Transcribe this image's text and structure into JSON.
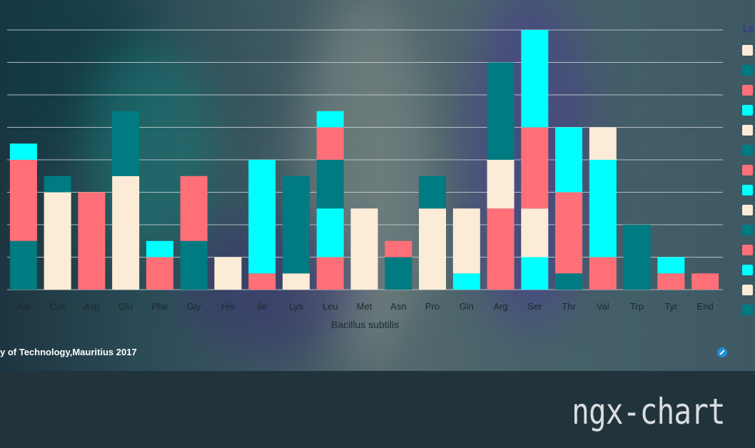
{
  "chart_data": {
    "type": "bar",
    "stacked": true,
    "xlabel": "Bacillus subtilis",
    "ylabel": "",
    "ylim": [
      0,
      8
    ],
    "grid": true,
    "categories": [
      "Ala",
      "Cys",
      "Asp",
      "Glu",
      "Phe",
      "Gly",
      "His",
      "Ile",
      "Lys",
      "Leu",
      "Met",
      "Asn",
      "Pro",
      "Gln",
      "Arg",
      "Ser",
      "Thr",
      "Val",
      "Trp",
      "Tyr",
      "End"
    ],
    "stacks": [
      [
        {
          "value": 1.5,
          "color": "#007b82"
        },
        {
          "value": 2.5,
          "color": "#ff6f77"
        },
        {
          "value": 0.5,
          "color": "#00ffff"
        }
      ],
      [
        {
          "value": 3,
          "color": "#fcecd7"
        },
        {
          "value": 0.5,
          "color": "#007b82"
        }
      ],
      [
        {
          "value": 3,
          "color": "#ff6f77"
        }
      ],
      [
        {
          "value": 3.5,
          "color": "#fcecd7"
        },
        {
          "value": 2,
          "color": "#007b82"
        }
      ],
      [
        {
          "value": 1,
          "color": "#ff6f77"
        },
        {
          "value": 0.5,
          "color": "#00ffff"
        }
      ],
      [
        {
          "value": 1.5,
          "color": "#007b82"
        },
        {
          "value": 2,
          "color": "#ff6f77"
        }
      ],
      [
        {
          "value": 1,
          "color": "#fcecd7"
        }
      ],
      [
        {
          "value": 0.5,
          "color": "#ff6f77"
        },
        {
          "value": 3.5,
          "color": "#00ffff"
        }
      ],
      [
        {
          "value": 0.5,
          "color": "#fcecd7"
        },
        {
          "value": 3,
          "color": "#007b82"
        }
      ],
      [
        {
          "value": 1,
          "color": "#ff6f77"
        },
        {
          "value": 1.5,
          "color": "#00ffff"
        },
        {
          "value": 1.5,
          "color": "#007b82"
        },
        {
          "value": 1,
          "color": "#ff6f77"
        },
        {
          "value": 0.5,
          "color": "#00ffff"
        }
      ],
      [
        {
          "value": 2.5,
          "color": "#fcecd7"
        }
      ],
      [
        {
          "value": 1,
          "color": "#007b82"
        },
        {
          "value": 0.5,
          "color": "#ff6f77"
        }
      ],
      [
        {
          "value": 2.5,
          "color": "#fcecd7"
        },
        {
          "value": 1,
          "color": "#007b82"
        }
      ],
      [
        {
          "value": 0.5,
          "color": "#00ffff"
        },
        {
          "value": 2,
          "color": "#fcecd7"
        }
      ],
      [
        {
          "value": 2.5,
          "color": "#ff6f77"
        },
        {
          "value": 1.5,
          "color": "#fcecd7"
        },
        {
          "value": 3,
          "color": "#007b82"
        }
      ],
      [
        {
          "value": 1,
          "color": "#00ffff"
        },
        {
          "value": 1.5,
          "color": "#fcecd7"
        },
        {
          "value": 2.5,
          "color": "#ff6f77"
        },
        {
          "value": 3,
          "color": "#00ffff"
        }
      ],
      [
        {
          "value": 0.5,
          "color": "#007b82"
        },
        {
          "value": 2.5,
          "color": "#ff6f77"
        },
        {
          "value": 2,
          "color": "#00ffff"
        }
      ],
      [
        {
          "value": 1,
          "color": "#ff6f77"
        },
        {
          "value": 3,
          "color": "#00ffff"
        },
        {
          "value": 1,
          "color": "#fcecd7"
        }
      ],
      [
        {
          "value": 2,
          "color": "#007b82"
        }
      ],
      [
        {
          "value": 0.5,
          "color": "#ff6f77"
        },
        {
          "value": 0.5,
          "color": "#00ffff"
        }
      ],
      [
        {
          "value": 0.5,
          "color": "#ff6f77"
        }
      ]
    ],
    "legend": {
      "title": "Le",
      "placement": "right",
      "swatches": [
        "#fcecd7",
        "#007b82",
        "#ff6f77",
        "#00ffff",
        "#fcecd7",
        "#007b82",
        "#ff6f77",
        "#00ffff",
        "#fcecd7",
        "#007b82",
        "#ff6f77",
        "#00ffff",
        "#fcecd7",
        "#007b82"
      ]
    }
  },
  "footer": {
    "credit": "y of Technology,Mauritius 2017",
    "brand": "ngx-chart"
  },
  "icons": {
    "link": "link-icon"
  }
}
